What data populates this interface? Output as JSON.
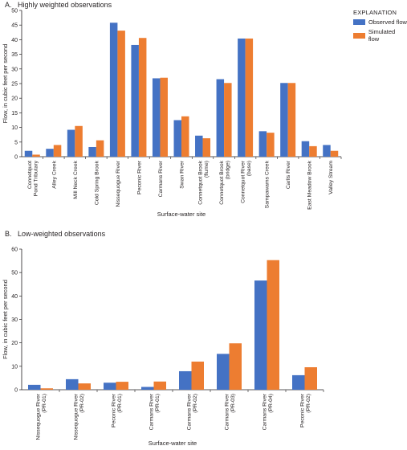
{
  "legend": {
    "title": "EXPLANATION",
    "observed_label": "Observed flow",
    "simulated_label": "Simulated flow"
  },
  "colors": {
    "observed": "#4472c4",
    "simulated": "#ed7d31"
  },
  "chart_data": [
    {
      "type": "bar",
      "panel": "A.",
      "title": "Highly weighted observations",
      "xlabel": "Surface-water site",
      "ylabel": "Flow, in cubic feet per second",
      "ylim": [
        0,
        50
      ],
      "yticks": [
        0,
        5,
        10,
        15,
        20,
        25,
        30,
        35,
        40,
        45,
        50
      ],
      "grid": false,
      "legend_position": "top-right",
      "categories": [
        [
          "Connetquot",
          "Pond Tributary"
        ],
        [
          "Alley Creek"
        ],
        [
          "Mill Neck Creek"
        ],
        [
          "Cold Spring Brook"
        ],
        [
          "Nissequogue River"
        ],
        [
          "Peconic River"
        ],
        [
          "Carmans River"
        ],
        [
          "Swan River"
        ],
        [
          "Connetquot Brook",
          "(flume)"
        ],
        [
          "Connetquot Brook",
          "(bridge)"
        ],
        [
          "Connetquot River",
          "(base)"
        ],
        [
          "Sampawams Creek"
        ],
        [
          "Carlls River"
        ],
        [
          "East Meadow Brook"
        ],
        [
          "Valley Stream"
        ]
      ],
      "series": [
        {
          "name": "Observed flow",
          "values": [
            2.0,
            2.7,
            9.2,
            3.3,
            45.8,
            38.2,
            26.8,
            12.5,
            7.2,
            26.5,
            40.4,
            8.7,
            25.2,
            5.3,
            4.0
          ]
        },
        {
          "name": "Simulated flow",
          "values": [
            0.7,
            4.0,
            10.5,
            5.6,
            43.1,
            40.6,
            27.0,
            13.8,
            6.3,
            25.2,
            40.4,
            8.2,
            25.2,
            3.6,
            2.0
          ]
        }
      ]
    },
    {
      "type": "bar",
      "panel": "B.",
      "title": "Low-weighted observations",
      "xlabel": "Surface-water site",
      "ylabel": "Flow, in cubic feet per second",
      "ylim": [
        0,
        60
      ],
      "yticks": [
        0,
        10,
        20,
        30,
        40,
        50,
        60
      ],
      "grid": false,
      "categories": [
        [
          "Nissequogue River",
          "(PR-01)"
        ],
        [
          "Nissequogue River",
          "(PR-02)"
        ],
        [
          "Peconic River",
          "(PR-01)"
        ],
        [
          "Carmans River",
          "(PR-01)"
        ],
        [
          "Carmans River",
          "(PR-02)"
        ],
        [
          "Carmans River",
          "(PR-03)"
        ],
        [
          "Carmans River",
          "(PR-04)"
        ],
        [
          "Peconic River",
          "(PR-02)"
        ]
      ],
      "series": [
        {
          "name": "Observed flow",
          "values": [
            2.1,
            4.5,
            3.0,
            1.2,
            7.9,
            15.3,
            46.6,
            6.2
          ]
        },
        {
          "name": "Simulated flow",
          "values": [
            0.6,
            2.7,
            3.4,
            3.5,
            12.0,
            19.8,
            55.3,
            9.6
          ]
        }
      ]
    }
  ]
}
